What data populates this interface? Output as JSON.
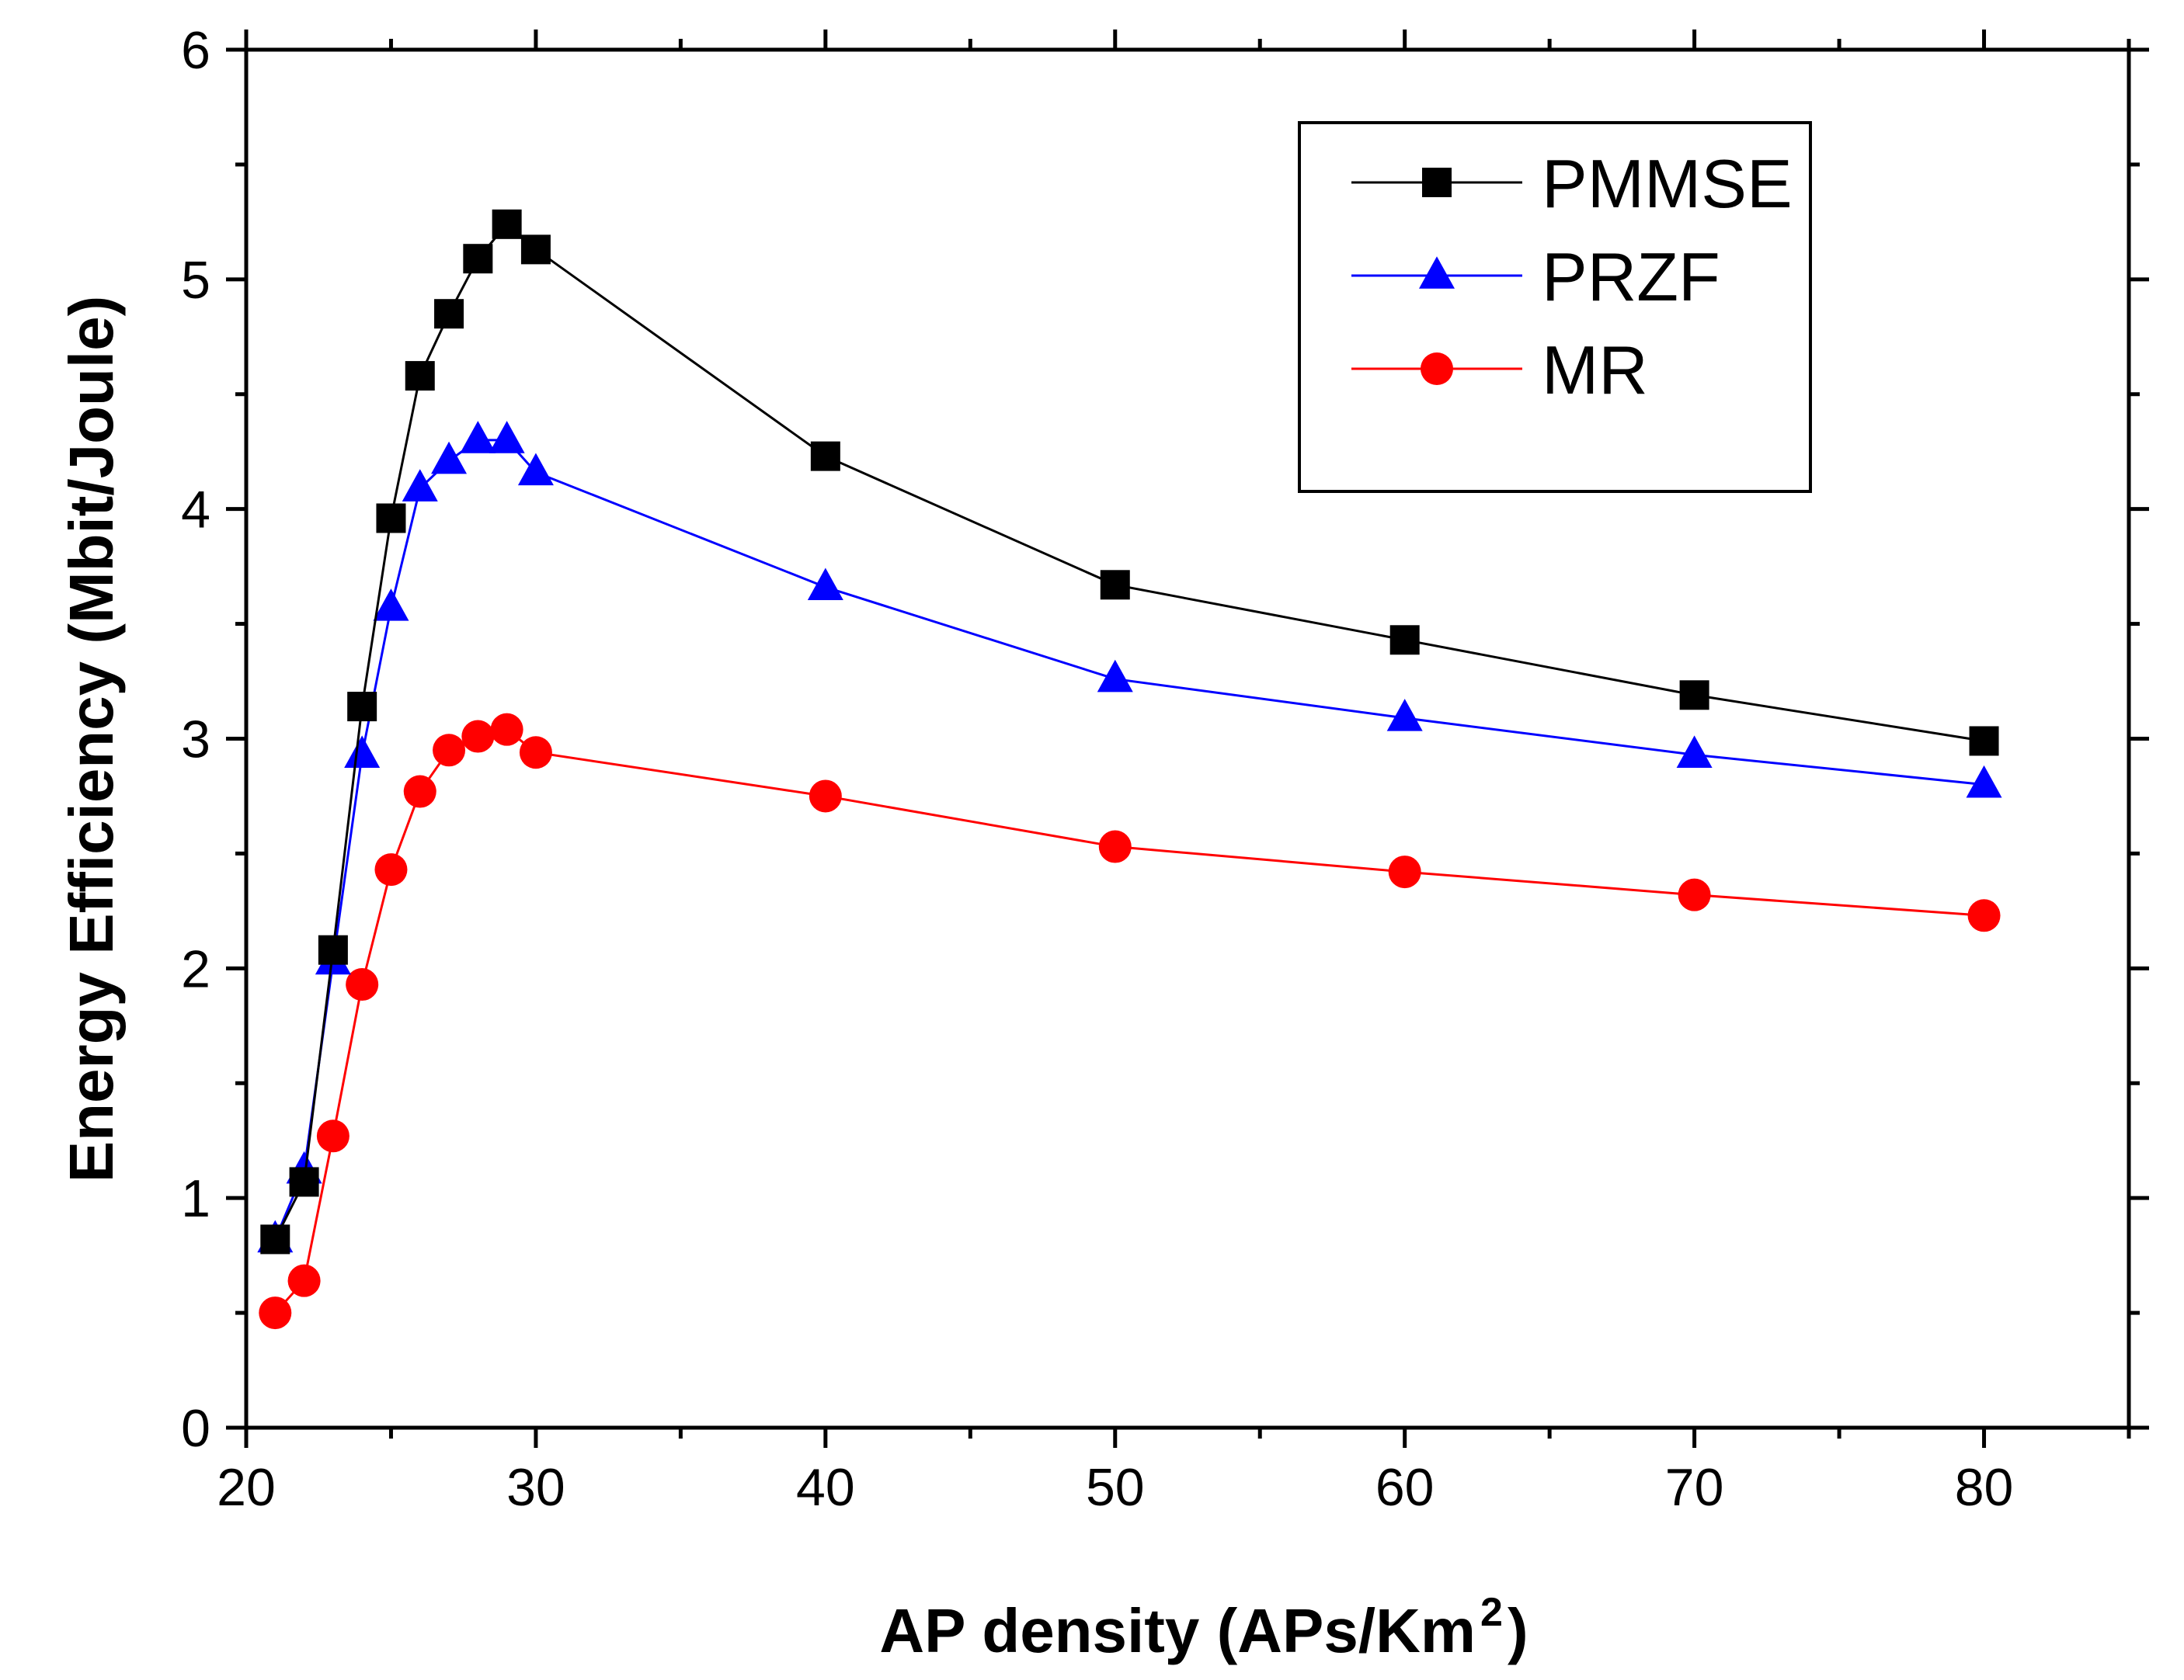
{
  "chart_data": {
    "type": "line",
    "title": "",
    "xlabel": "AP density (APs/Km",
    "xlabel_sup": "2",
    "xlabel_close": ")",
    "ylabel": "Energy Efficiency (Mbit/Joule)",
    "xlim": [
      20,
      85
    ],
    "ylim": [
      0,
      6
    ],
    "xticks": [
      20,
      30,
      40,
      50,
      60,
      70,
      80
    ],
    "yticks": [
      0,
      1,
      2,
      3,
      4,
      5,
      6
    ],
    "legend_position": "top-right",
    "x": [
      21,
      22,
      23,
      24,
      25,
      26,
      27,
      28,
      29,
      30,
      40,
      50,
      60,
      70,
      80
    ],
    "series": [
      {
        "name": "PMMSE",
        "color": "#000000",
        "marker": "square",
        "values": [
          0.82,
          1.07,
          2.08,
          3.14,
          3.96,
          4.58,
          4.85,
          5.09,
          5.24,
          5.13,
          4.23,
          3.67,
          3.43,
          3.19,
          2.99
        ]
      },
      {
        "name": "PRZF",
        "color": "#0000ff",
        "marker": "triangle",
        "values": [
          0.82,
          1.12,
          2.03,
          2.93,
          3.57,
          4.09,
          4.21,
          4.3,
          4.3,
          4.16,
          3.66,
          3.26,
          3.09,
          2.93,
          2.8
        ]
      },
      {
        "name": "MR",
        "color": "#ff0000",
        "marker": "circle",
        "values": [
          0.5,
          0.64,
          1.27,
          1.93,
          2.43,
          2.77,
          2.95,
          3.01,
          3.04,
          2.94,
          2.75,
          2.53,
          2.42,
          2.32,
          2.23
        ]
      }
    ]
  }
}
